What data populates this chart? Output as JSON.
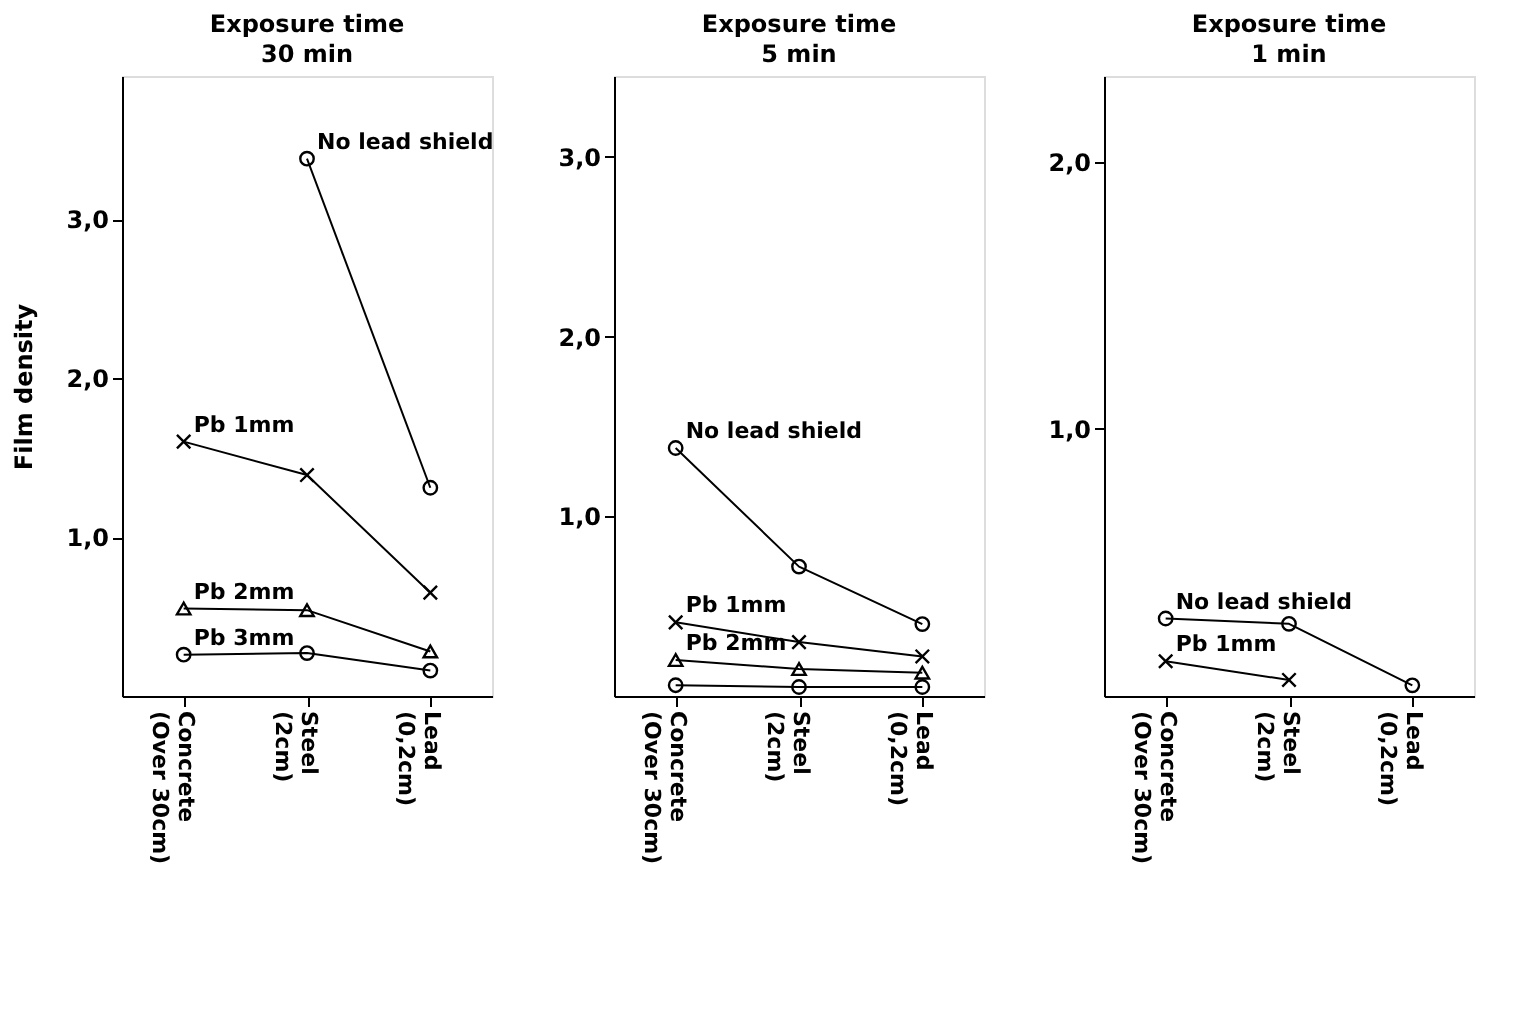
{
  "chart_data": [
    {
      "type": "line",
      "title": "Exposure time",
      "subtitle": "30 min",
      "ylabel": "Film density",
      "categories": [
        "Concrete\n(Over 30cm)",
        "Steel\n(2cm)",
        "Lead\n(0,2cm)"
      ],
      "ylim": [
        0,
        3.9
      ],
      "yticks": [
        {
          "value": 1,
          "label": "1,0"
        },
        {
          "value": 2,
          "label": "2,0"
        },
        {
          "value": 3,
          "label": "3,0"
        }
      ],
      "series": [
        {
          "name": "No lead shield",
          "color": "#000000",
          "marker": "circle",
          "values": [
            null,
            3.38,
            1.31
          ]
        },
        {
          "name": "Pb 1mm",
          "color": "#000000",
          "marker": "cross",
          "values": [
            1.6,
            1.39,
            0.65
          ]
        },
        {
          "name": "Pb 2mm",
          "color": "#000000",
          "marker": "triangle",
          "values": [
            0.55,
            0.54,
            0.28
          ]
        },
        {
          "name": "Pb 3mm",
          "color": "#000000",
          "marker": "circle",
          "values": [
            0.26,
            0.27,
            0.16
          ]
        }
      ]
    },
    {
      "type": "line",
      "title": "Exposure time",
      "subtitle": "5 min",
      "categories": [
        "Concrete\n(Over 30cm)",
        "Steel\n(2cm)",
        "Lead\n(0,2cm)"
      ],
      "ylim": [
        0,
        3.45
      ],
      "yticks": [
        {
          "value": 1,
          "label": "1,0"
        },
        {
          "value": 2,
          "label": "2,0"
        },
        {
          "value": 3,
          "label": "3,0"
        }
      ],
      "series": [
        {
          "name": "No lead shield",
          "color": "#000000",
          "marker": "circle",
          "values": [
            1.38,
            0.72,
            0.4
          ]
        },
        {
          "name": "Pb 1mm",
          "color": "#000000",
          "marker": "cross",
          "values": [
            0.41,
            0.3,
            0.22
          ]
        },
        {
          "name": "Pb 2mm",
          "color": "#000000",
          "marker": "triangle",
          "values": [
            0.2,
            0.15,
            0.13
          ]
        },
        {
          "color": "#000000",
          "marker": "circle",
          "values": [
            0.06,
            0.05,
            0.05
          ]
        }
      ]
    },
    {
      "type": "line",
      "title": "Exposure time",
      "subtitle": "1 min",
      "categories": [
        "Concrete\n(Over 30cm)",
        "Steel\n(2cm)",
        "Lead\n(0,2cm)"
      ],
      "ylim": [
        0,
        2.32
      ],
      "yticks": [
        {
          "value": 1,
          "label": "1,0"
        },
        {
          "value": 2,
          "label": "2,0"
        }
      ],
      "series": [
        {
          "name": "No lead shield",
          "color": "#000000",
          "marker": "circle",
          "values": [
            0.29,
            0.27,
            0.04
          ]
        },
        {
          "name": "Pb 1mm",
          "color": "#000000",
          "marker": "cross",
          "values": [
            0.13,
            0.06,
            null
          ]
        }
      ]
    }
  ]
}
